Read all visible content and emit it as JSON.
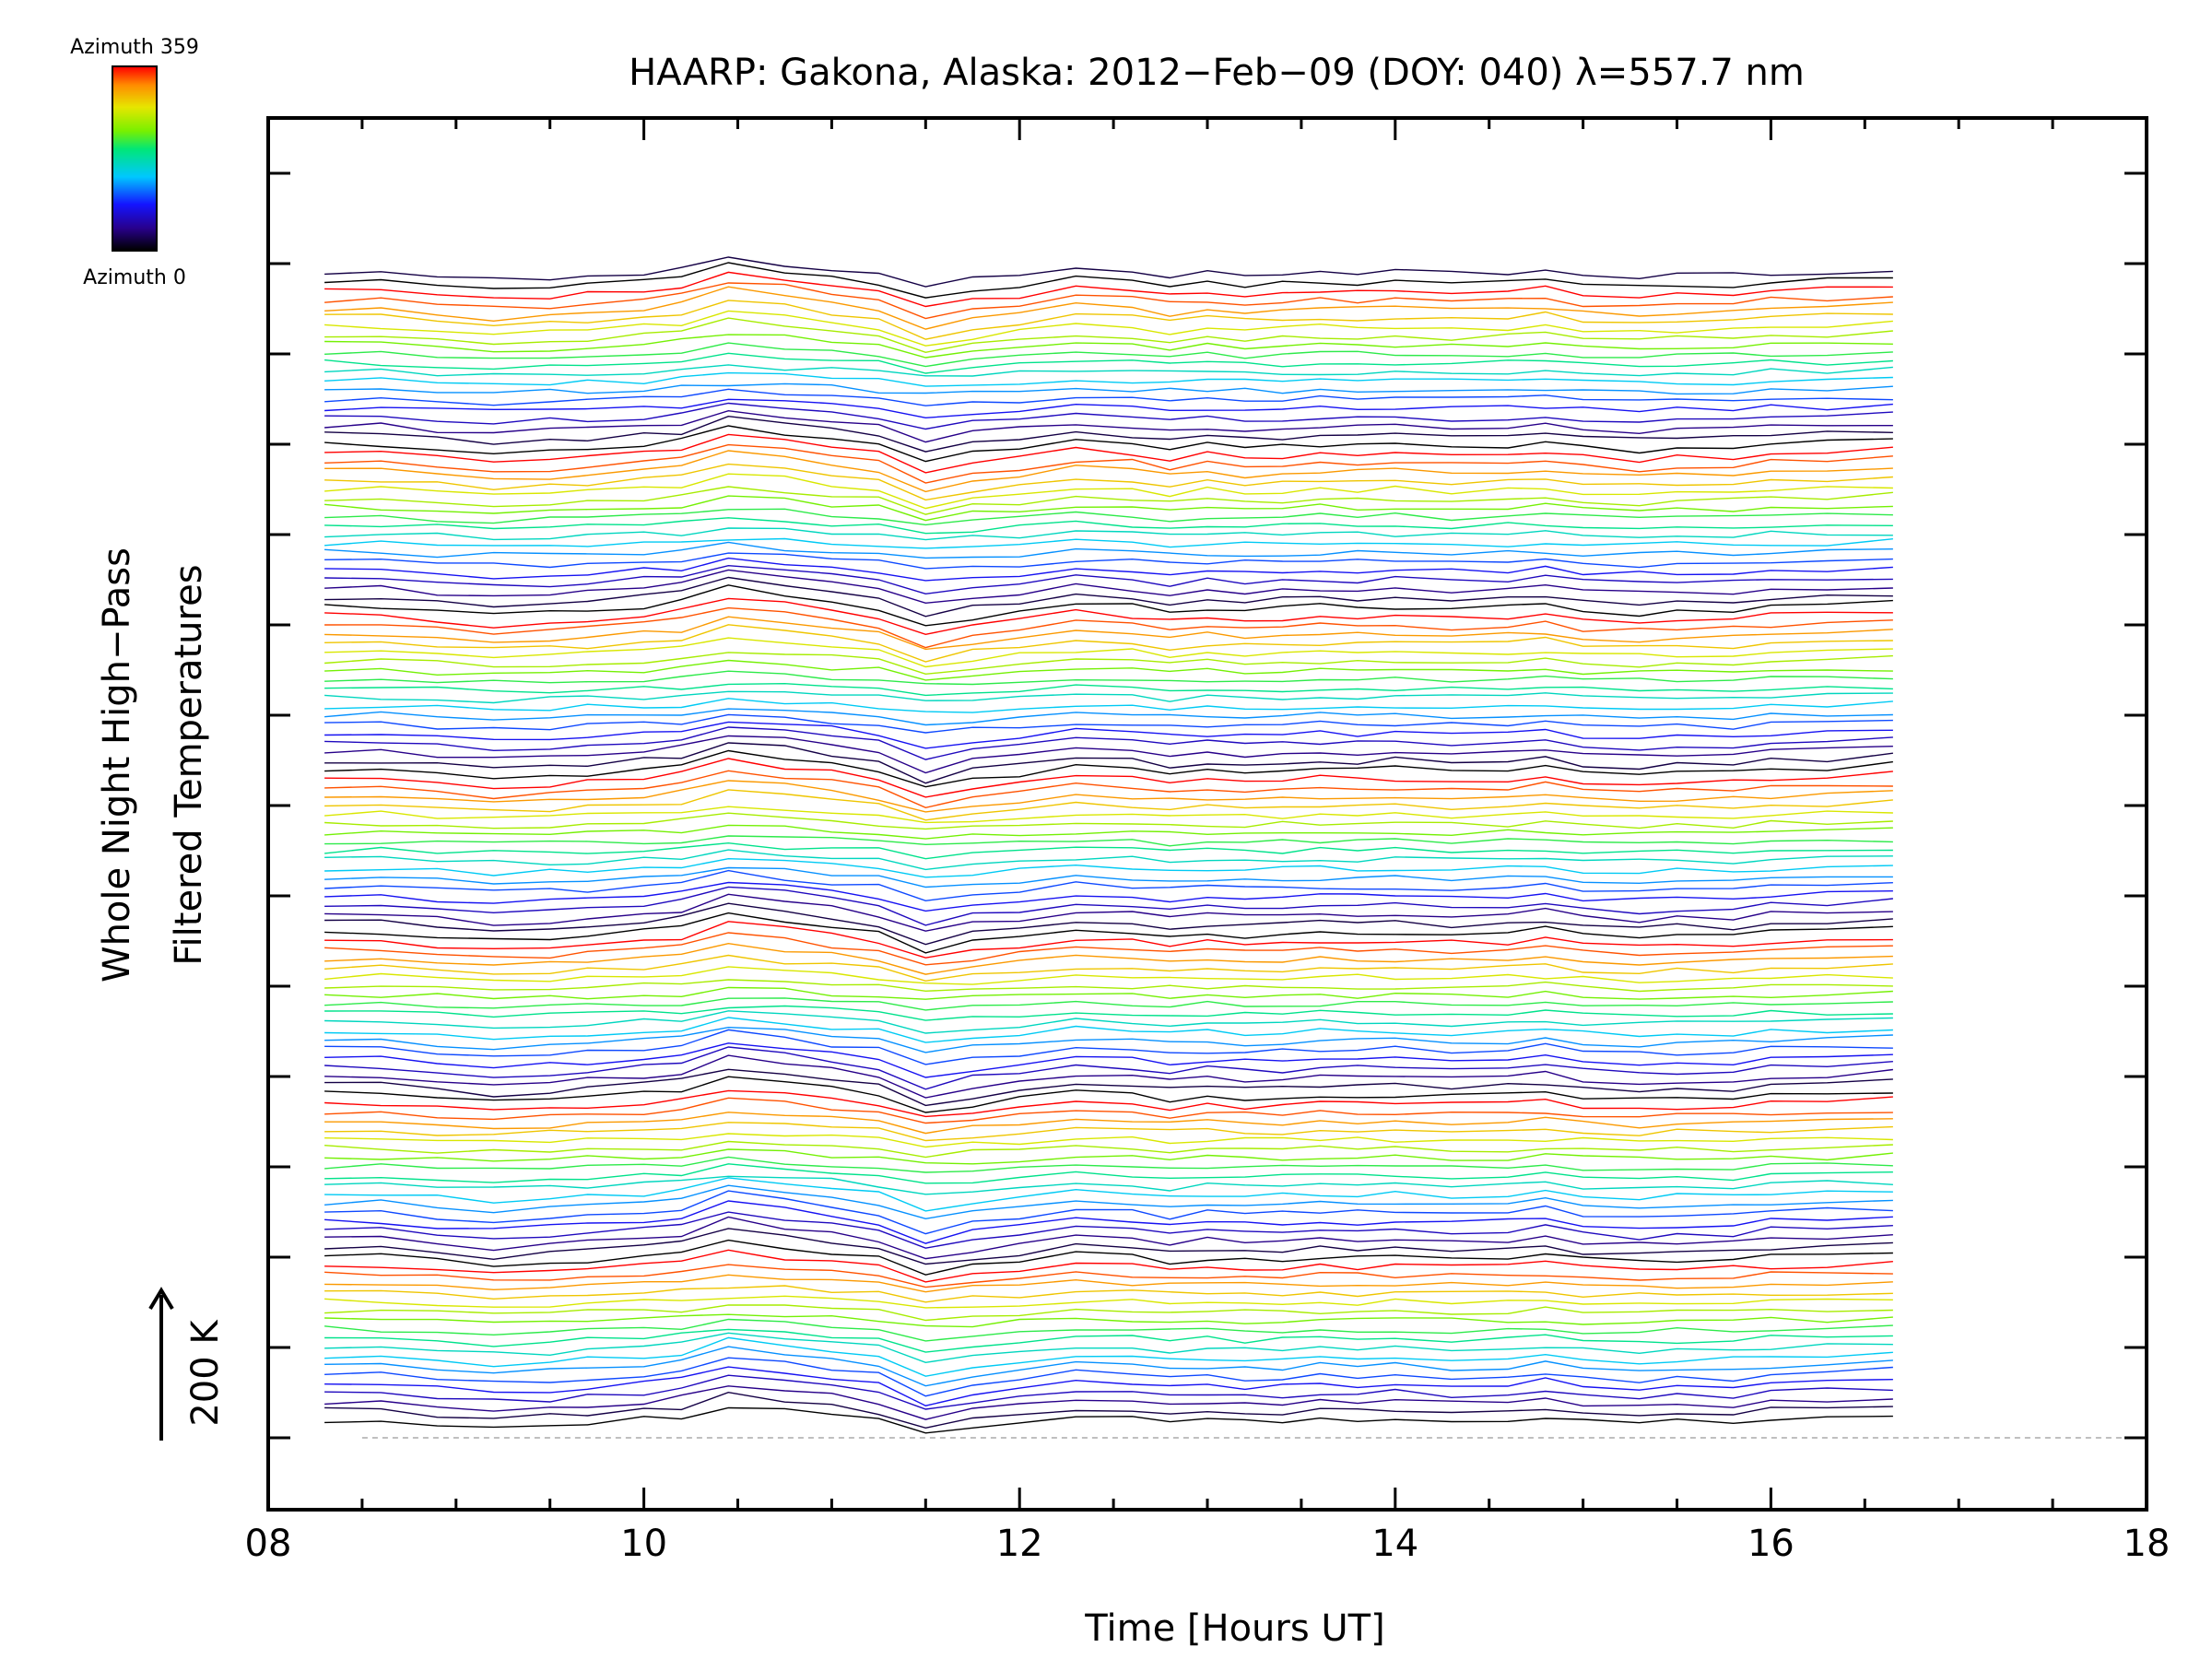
{
  "chart_data": {
    "type": "line",
    "title": "HAARP: Gakona,  Alaska: 2012−Feb−09 (DOY: 040) λ=557.7 nm",
    "xlabel": "Time [Hours UT]",
    "ylabel_line1": "Whole Night High−Pass",
    "ylabel_line2": "Filtered Temperatures",
    "xlim": [
      8,
      18
    ],
    "x_ticks": [
      8,
      10,
      12,
      14,
      16,
      18
    ],
    "x_tick_labels": [
      "08",
      "10",
      "12",
      "14",
      "16",
      "18"
    ],
    "y_ticks_hidden_labels": 15,
    "scale_label": "200 K",
    "grid": false,
    "baseline_dashed": true,
    "colorbar": {
      "top_label": "Azimuth 359",
      "bottom_label": "Azimuth 0",
      "colormap": "rainbow"
    },
    "series_count": 128,
    "azimuth_cycle": 18,
    "x_start": 8.3,
    "x_end": 16.65,
    "sample_times": [
      8.3,
      8.6,
      8.9,
      9.2,
      9.5,
      9.7,
      10.0,
      10.2,
      10.45,
      10.75,
      11.0,
      11.25,
      11.5,
      11.75,
      12.0,
      12.3,
      12.6,
      12.8,
      13.0,
      13.2,
      13.4,
      13.6,
      13.8,
      14.0,
      14.3,
      14.6,
      14.8,
      15.0,
      15.3,
      15.5,
      15.8,
      16.0,
      16.3,
      16.65
    ],
    "typical_profile_k": [
      0,
      0,
      -8,
      -14,
      -10,
      -6,
      0,
      6,
      28,
      18,
      8,
      -2,
      -30,
      -16,
      -8,
      4,
      0,
      -8,
      -2,
      -6,
      -4,
      0,
      -2,
      0,
      -4,
      -2,
      4,
      -6,
      -10,
      -6,
      -6,
      0,
      2,
      6
    ]
  }
}
